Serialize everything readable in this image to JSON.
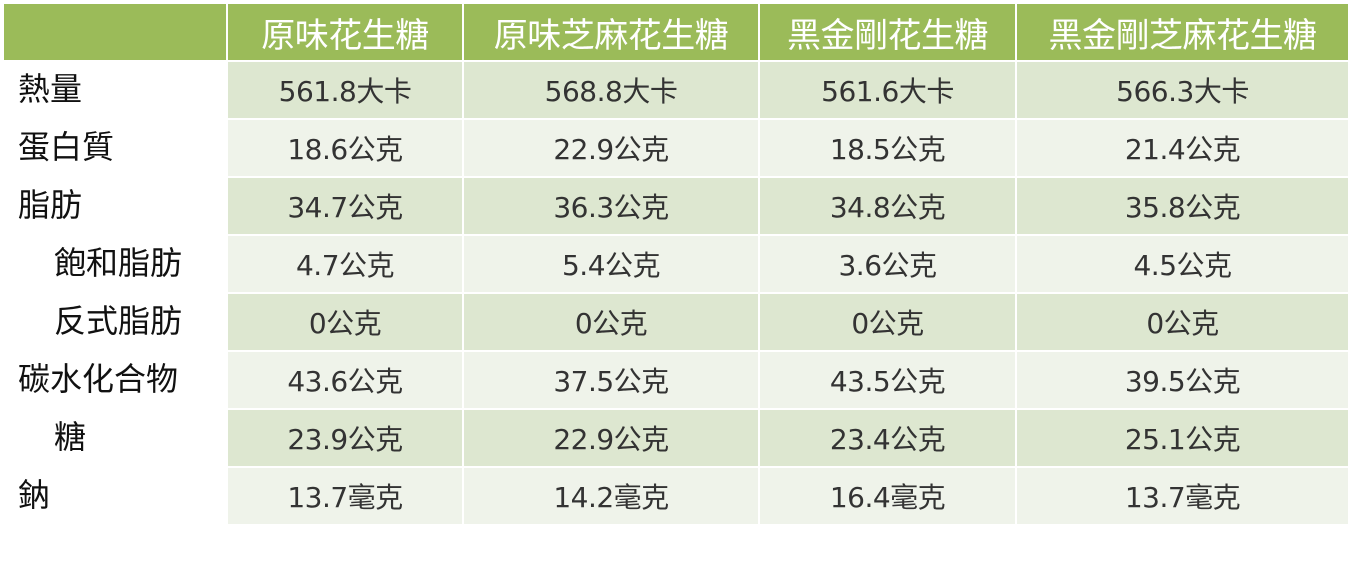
{
  "table": {
    "headers": [
      "原味花生糖",
      "原味芝麻花生糖",
      "黑金剛花生糖",
      "黑金剛芝麻花生糖"
    ],
    "rows": [
      {
        "label": "熱量",
        "indent": false,
        "values": [
          "561.8大卡",
          "568.8大卡",
          "561.6大卡",
          "566.3大卡"
        ]
      },
      {
        "label": "蛋白質",
        "indent": false,
        "values": [
          "18.6公克",
          "22.9公克",
          "18.5公克",
          "21.4公克"
        ]
      },
      {
        "label": "脂肪",
        "indent": false,
        "values": [
          "34.7公克",
          "36.3公克",
          "34.8公克",
          "35.8公克"
        ]
      },
      {
        "label": "飽和脂肪",
        "indent": true,
        "values": [
          "4.7公克",
          "5.4公克",
          "3.6公克",
          "4.5公克"
        ]
      },
      {
        "label": "反式脂肪",
        "indent": true,
        "values": [
          "0公克",
          "0公克",
          "0公克",
          "0公克"
        ]
      },
      {
        "label": "碳水化合物",
        "indent": false,
        "values": [
          "43.6公克",
          "37.5公克",
          "43.5公克",
          "39.5公克"
        ]
      },
      {
        "label": "糖",
        "indent": true,
        "values": [
          "23.9公克",
          "22.9公克",
          "23.4公克",
          "25.1公克"
        ]
      },
      {
        "label": "鈉",
        "indent": false,
        "values": [
          "13.7毫克",
          "14.2毫克",
          "16.4毫克",
          "13.7毫克"
        ]
      }
    ]
  },
  "colors": {
    "header_green": "#9bbb59",
    "row_band_dark": "#dde7d0",
    "row_band_light": "#eff3ea"
  }
}
